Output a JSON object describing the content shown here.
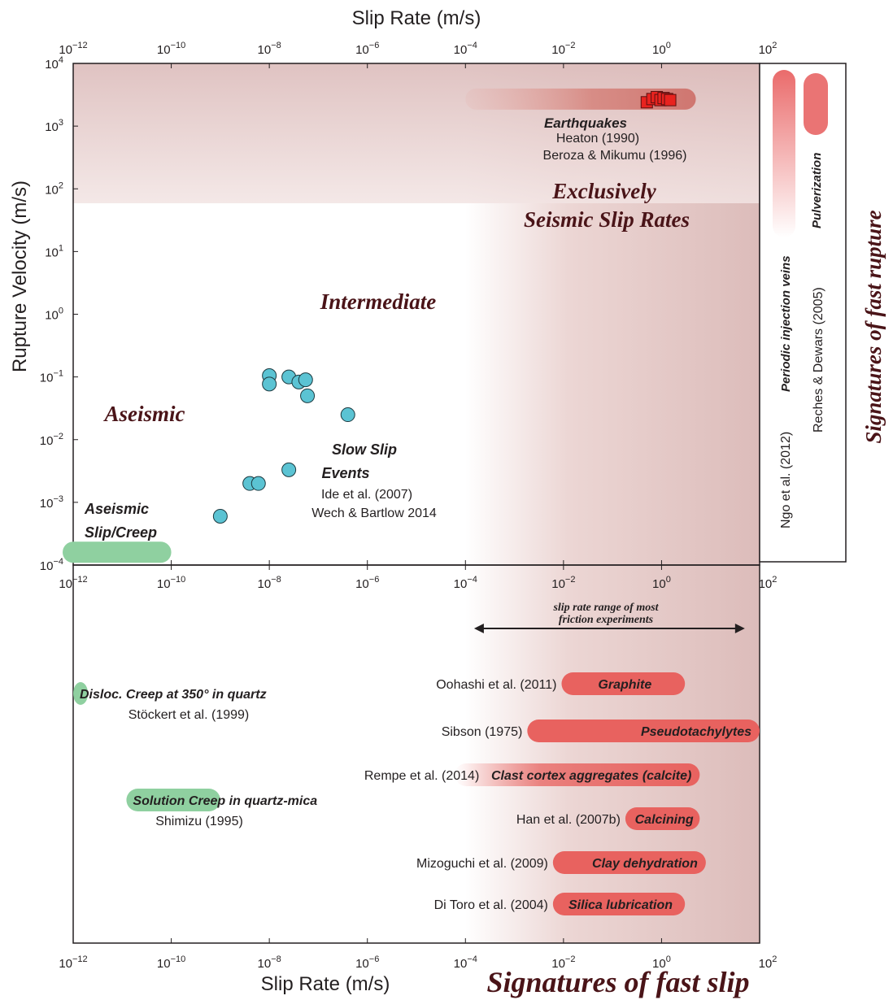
{
  "chart_data": [
    {
      "type": "scatter",
      "xlabel": "Slip Rate (m/s)",
      "ylabel": "Rupture Velocity (m/s)",
      "x_scale": "log",
      "y_scale": "log",
      "xlim": [
        1e-12,
        100
      ],
      "ylim": [
        0.0001,
        10000
      ],
      "x_tick_labels": [
        {
          "base": "10",
          "exp": "−12"
        },
        {
          "base": "10",
          "exp": "−10"
        },
        {
          "base": "10",
          "exp": "−8"
        },
        {
          "base": "10",
          "exp": "−6"
        },
        {
          "base": "10",
          "exp": "−4"
        },
        {
          "base": "10",
          "exp": "−2"
        },
        {
          "base": "10",
          "exp": "0"
        },
        {
          "base": "10",
          "exp": "2"
        }
      ],
      "y_tick_labels": [
        {
          "base": "10",
          "exp": "4"
        },
        {
          "base": "10",
          "exp": "3"
        },
        {
          "base": "10",
          "exp": "2"
        },
        {
          "base": "10",
          "exp": "1"
        },
        {
          "base": "10",
          "exp": "0"
        },
        {
          "base": "10",
          "exp": "−1"
        },
        {
          "base": "10",
          "exp": "−2"
        },
        {
          "base": "10",
          "exp": "−3"
        },
        {
          "base": "10",
          "exp": "−4"
        }
      ],
      "regions": {
        "aseismic": "Aseismic",
        "intermediate": "Intermediate",
        "seismic_line1": "Exclusively",
        "seismic_line2": "Seismic Slip Rates"
      },
      "series": [
        {
          "name": "Earthquakes",
          "refs": [
            "Heaton (1990)",
            "Beroza & Mikumu (1996)"
          ],
          "marker": "square",
          "color": "#e8231f",
          "range_x": [
            0.0001,
            5
          ],
          "range_y": 2700,
          "points": [
            {
              "x": 0.5,
              "y": 2400
            },
            {
              "x": 0.65,
              "y": 2700
            },
            {
              "x": 0.8,
              "y": 2900
            },
            {
              "x": 0.95,
              "y": 2600
            },
            {
              "x": 1.1,
              "y": 2800
            },
            {
              "x": 1.3,
              "y": 2700
            },
            {
              "x": 1.5,
              "y": 2600
            }
          ]
        },
        {
          "name_line1": "Slow Slip",
          "name_line2": "Events",
          "refs": [
            "Ide et al. (2007)",
            "Wech & Bartlow 2014"
          ],
          "marker": "circle",
          "color": "#5bc3d3",
          "points": [
            {
              "x": 1e-09,
              "y": 0.0006
            },
            {
              "x": 4e-09,
              "y": 0.002
            },
            {
              "x": 6e-09,
              "y": 0.002
            },
            {
              "x": 2.5e-08,
              "y": 0.0033
            },
            {
              "x": 1e-08,
              "y": 0.105
            },
            {
              "x": 1e-08,
              "y": 0.077
            },
            {
              "x": 2.5e-08,
              "y": 0.1
            },
            {
              "x": 4e-08,
              "y": 0.083
            },
            {
              "x": 5.5e-08,
              "y": 0.09
            },
            {
              "x": 6e-08,
              "y": 0.05
            },
            {
              "x": 4e-07,
              "y": 0.025
            }
          ]
        },
        {
          "name_line1": "Aseismic",
          "name_line2": "Slip/Creep",
          "marker": "bar",
          "color": "#8fd0a0",
          "range_x": [
            1e-12,
            1e-10
          ],
          "range_y": 0.00016
        }
      ],
      "side_panel": {
        "title": "Signatures of fast rupture",
        "items": [
          {
            "name": "Periodic injection veins",
            "ref": "Ngo et al. (2012)",
            "color": "#ea6b6b"
          },
          {
            "name": "Pulverization",
            "ref": "Reches & Dewars (2005)",
            "color": "#ea6b6b"
          }
        ]
      }
    },
    {
      "type": "bar",
      "orientation": "horizontal-range",
      "title": "Signatures of fast slip",
      "xlabel": "Slip Rate (m/s)",
      "x_scale": "log",
      "xlim": [
        1e-12,
        100
      ],
      "friction_range": {
        "label_line1": "slip rate range of most",
        "label_line2": "friction experiments",
        "x": [
          0.00015,
          50
        ]
      },
      "bars": [
        {
          "label": "Graphite",
          "ref": "Oohashi et al. (2011)",
          "x": [
            0.015,
            3
          ],
          "color": "#e8625f",
          "fade": false
        },
        {
          "label": "Pseudotachylytes",
          "ref": "Sibson (1975)",
          "x": [
            0.003,
            100
          ],
          "color": "#e8625f",
          "fade": false
        },
        {
          "label": "Clast cortex aggregates (calcite)",
          "ref": "Rempe et al. (2014)",
          "x": [
            0.0001,
            6
          ],
          "color": "#e8625f",
          "fade": true
        },
        {
          "label": "Calcining",
          "ref": "Han et al. (2007b)",
          "x": [
            0.3,
            6
          ],
          "color": "#e8625f",
          "fade": false
        },
        {
          "label": "Clay dehydration",
          "ref": "Mizoguchi et al. (2009)",
          "x": [
            0.01,
            8
          ],
          "color": "#e8625f",
          "fade": false
        },
        {
          "label": "Silica lubrication",
          "ref": "Di Toro et al. (2004)",
          "x": [
            0.01,
            3
          ],
          "color": "#e8625f",
          "fade": false
        },
        {
          "label": "Disloc. Creep at 350° in quartz",
          "ref": "Stöckert et al. (1999)",
          "x": [
            1e-12,
            2e-12
          ],
          "color": "#8fd0a0",
          "fade": false
        },
        {
          "label": "Solution Creep in quartz-mica",
          "ref": "Shimizu (1995)",
          "x": [
            2e-11,
            1e-09
          ],
          "color": "#8fd0a0",
          "fade": false
        }
      ]
    }
  ]
}
